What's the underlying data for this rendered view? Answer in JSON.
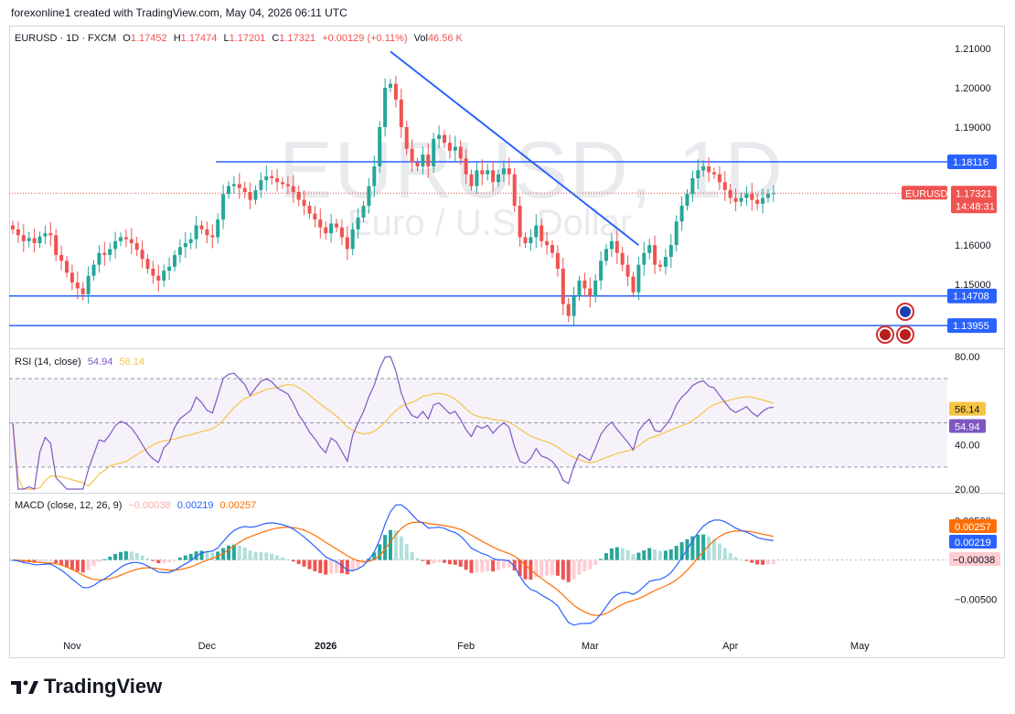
{
  "credit": "forexonline1 created with TradingView.com, May 04, 2026 06:11 UTC",
  "symbol_line": {
    "symbol": "EURUSD · 1D · FXCM",
    "o_label": "O",
    "o": "1.17452",
    "h_label": "H",
    "h": "1.17474",
    "l_label": "L",
    "l": "1.17201",
    "c_label": "C",
    "c": "1.17321",
    "change": "+0.00129 (+0.11%)",
    "vol_label": "Vol",
    "vol": "46.56 K"
  },
  "watermark": {
    "symbol": "EURUSD, 1D",
    "description": "Euro / U.S. Dollar"
  },
  "colors": {
    "up": "#26a69a",
    "down": "#ef5350",
    "trend": "#2962ff",
    "rsi": "#7e57c2",
    "rsi_ma": "#f6c445",
    "macd": "#2962ff",
    "signal": "#ff6d00"
  },
  "chart_data": [
    {
      "type": "candlestick",
      "name": "EURUSD price",
      "x_tick_labels": [
        "Nov",
        "Dec",
        "2026",
        "Feb",
        "Mar",
        "Apr",
        "May"
      ],
      "y_ticks": [
        "1.21000",
        "1.20000",
        "1.19000",
        "1.16000",
        "1.15000"
      ],
      "ylim": [
        1.134,
        1.213
      ],
      "horizontal_levels": [
        {
          "value": 1.18116,
          "label": "1.18116"
        },
        {
          "value": 1.14708,
          "label": "1.14708"
        },
        {
          "value": 1.13955,
          "label": "1.13955"
        }
      ],
      "trendline": {
        "from_index": 70,
        "from_value": 1.2092,
        "to_index": 116,
        "to_value": 1.16
      },
      "last_price": {
        "symbol_label": "EURUSD",
        "value": "1.17321",
        "countdown": "14:48:31"
      },
      "closes": [
        1.164,
        1.1625,
        1.161,
        1.1618,
        1.1605,
        1.1622,
        1.163,
        1.1625,
        1.1575,
        1.156,
        1.153,
        1.1505,
        1.149,
        1.1475,
        1.1522,
        1.155,
        1.158,
        1.1575,
        1.159,
        1.161,
        1.162,
        1.1615,
        1.1605,
        1.1588,
        1.1565,
        1.154,
        1.1522,
        1.151,
        1.1535,
        1.1545,
        1.1575,
        1.1595,
        1.1605,
        1.1615,
        1.165,
        1.164,
        1.1625,
        1.162,
        1.1665,
        1.173,
        1.175,
        1.1755,
        1.1745,
        1.1735,
        1.1715,
        1.174,
        1.1765,
        1.1775,
        1.177,
        1.176,
        1.1755,
        1.175,
        1.1735,
        1.1715,
        1.17,
        1.168,
        1.1665,
        1.1645,
        1.163,
        1.1655,
        1.1645,
        1.162,
        1.159,
        1.164,
        1.167,
        1.17,
        1.175,
        1.18,
        1.19,
        1.2,
        1.201,
        1.197,
        1.19,
        1.1845,
        1.181,
        1.18,
        1.183,
        1.18,
        1.187,
        1.188,
        1.186,
        1.184,
        1.185,
        1.182,
        1.178,
        1.175,
        1.179,
        1.178,
        1.179,
        1.176,
        1.178,
        1.1795,
        1.178,
        1.17,
        1.162,
        1.1605,
        1.162,
        1.165,
        1.161,
        1.16,
        1.158,
        1.154,
        1.145,
        1.142,
        1.147,
        1.151,
        1.149,
        1.147,
        1.151,
        1.156,
        1.159,
        1.161,
        1.158,
        1.155,
        1.152,
        1.148,
        1.155,
        1.158,
        1.16,
        1.155,
        1.1545,
        1.157,
        1.16,
        1.166,
        1.17,
        1.173,
        1.177,
        1.179,
        1.18,
        1.1785,
        1.178,
        1.176,
        1.174,
        1.172,
        1.171,
        1.172,
        1.173,
        1.1715,
        1.1705,
        1.172,
        1.173,
        1.1732
      ]
    },
    {
      "type": "line",
      "name": "RSI",
      "legend": {
        "label": "RSI (14, close)",
        "value": "54.94",
        "ma_value": "56.14"
      },
      "y_ticks": [
        "80.00",
        "40.00",
        "20.00"
      ],
      "ylim": [
        20,
        80
      ],
      "bands": [
        70,
        50,
        30
      ],
      "last_labels": [
        "56.14",
        "54.94"
      ]
    },
    {
      "type": "bar+line",
      "name": "MACD",
      "legend": {
        "label": "MACD (close, 12, 26, 9)",
        "hist": "−0.00038",
        "macd": "0.00219",
        "signal": "0.00257"
      },
      "y_ticks": [
        "0.00500",
        "−0.00500"
      ],
      "ylim": [
        -0.009,
        0.0075
      ],
      "last_labels": [
        "0.00257",
        "0.00219",
        "−0.00038"
      ]
    }
  ],
  "brand": "TradingView"
}
